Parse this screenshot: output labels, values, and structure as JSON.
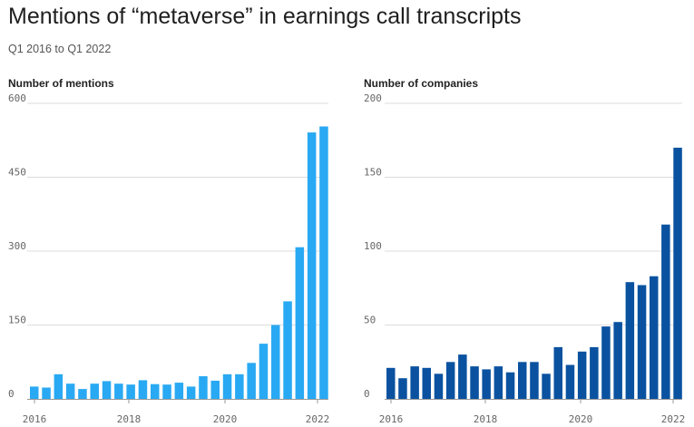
{
  "title": "Mentions of “metaverse” in earnings call transcripts",
  "subtitle": "Q1 2016 to Q1 2022",
  "colors": {
    "mentions": "#29a9f3",
    "companies": "#0a52a0",
    "grid": "#dcdcdc",
    "axis": "#999999"
  },
  "chart_data": [
    {
      "type": "bar",
      "title": "Number of mentions",
      "xlabel": "",
      "ylabel": "",
      "grid": true,
      "ylim": [
        0,
        600
      ],
      "yticks": [
        "0",
        "150",
        "300",
        "450",
        "600"
      ],
      "xticks": [
        "2016",
        "2018",
        "2020",
        "2022"
      ],
      "categories": [
        "Q1 2016",
        "Q2 2016",
        "Q3 2016",
        "Q4 2016",
        "Q1 2017",
        "Q2 2017",
        "Q3 2017",
        "Q4 2017",
        "Q1 2018",
        "Q2 2018",
        "Q3 2018",
        "Q4 2018",
        "Q1 2019",
        "Q2 2019",
        "Q3 2019",
        "Q4 2019",
        "Q1 2020",
        "Q2 2020",
        "Q3 2020",
        "Q4 2020",
        "Q1 2021",
        "Q2 2021",
        "Q3 2021",
        "Q4 2021",
        "Q1 2022"
      ],
      "values": [
        25,
        23,
        50,
        31,
        20,
        31,
        36,
        31,
        29,
        38,
        30,
        29,
        33,
        25,
        46,
        37,
        50,
        50,
        73,
        112,
        150,
        198,
        308,
        541,
        553
      ]
    },
    {
      "type": "bar",
      "title": "Number of companies",
      "xlabel": "",
      "ylabel": "",
      "grid": true,
      "ylim": [
        0,
        200
      ],
      "yticks": [
        "0",
        "50",
        "100",
        "150",
        "200"
      ],
      "xticks": [
        "2016",
        "2018",
        "2020",
        "2022"
      ],
      "categories": [
        "Q1 2016",
        "Q2 2016",
        "Q3 2016",
        "Q4 2016",
        "Q1 2017",
        "Q2 2017",
        "Q3 2017",
        "Q4 2017",
        "Q1 2018",
        "Q2 2018",
        "Q3 2018",
        "Q4 2018",
        "Q1 2019",
        "Q2 2019",
        "Q3 2019",
        "Q4 2019",
        "Q1 2020",
        "Q2 2020",
        "Q3 2020",
        "Q4 2020",
        "Q1 2021",
        "Q2 2021",
        "Q3 2021",
        "Q4 2021",
        "Q1 2022"
      ],
      "values": [
        21,
        14,
        22,
        21,
        17,
        25,
        30,
        22,
        20,
        22,
        18,
        25,
        25,
        17,
        35,
        23,
        32,
        35,
        49,
        52,
        79,
        77,
        83,
        118,
        170
      ]
    }
  ]
}
